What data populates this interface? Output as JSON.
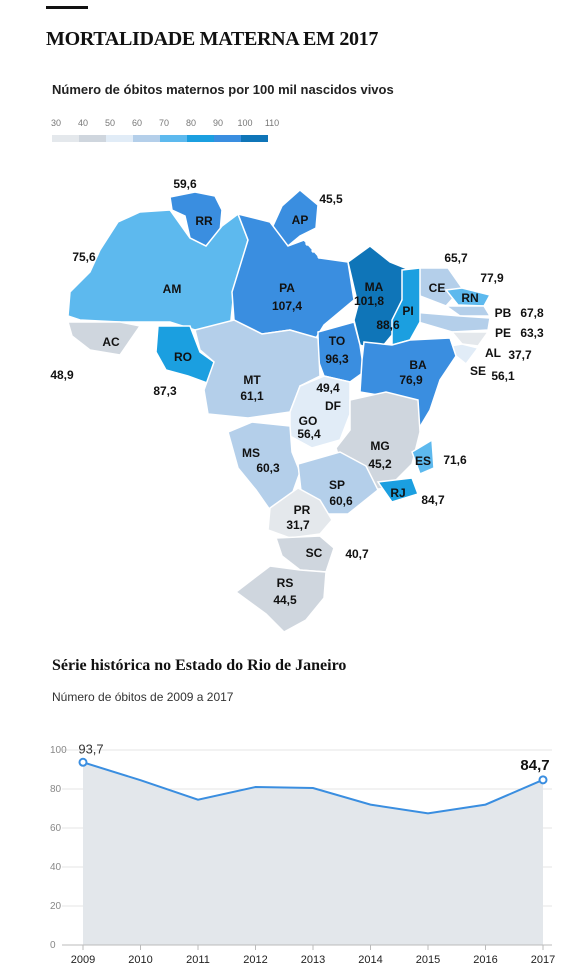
{
  "header": {
    "title": "MORTALIDADE MATERNA EM 2017"
  },
  "map": {
    "subtitle": "Número de óbitos maternos por 100 mil nascidos vivos",
    "legend": {
      "ticks": [
        "30",
        "40",
        "50",
        "60",
        "70",
        "80",
        "90",
        "100",
        "110"
      ],
      "colors": [
        "#e4e8ec",
        "#cfd6de",
        "#e1ecf7",
        "#b4cfea",
        "#5db9ee",
        "#1b9fe0",
        "#3a8ee0",
        "#0f75b8"
      ]
    },
    "states": [
      {
        "uf": "RR",
        "value": "59,6",
        "color": "#3a8ee0"
      },
      {
        "uf": "AP",
        "value": "45,5",
        "color": "#3a8ee0"
      },
      {
        "uf": "AM",
        "value": "75,6",
        "color": "#5db9ee"
      },
      {
        "uf": "PA",
        "value": "107,4",
        "color": "#3a8ee0"
      },
      {
        "uf": "MA",
        "value": "101,8",
        "color": "#0f75b8"
      },
      {
        "uf": "CE",
        "value": "65,7",
        "color": "#b4cfea"
      },
      {
        "uf": "RN",
        "value": "77,9",
        "color": "#5db9ee"
      },
      {
        "uf": "PB",
        "value": "67,8",
        "color": "#b4cfea"
      },
      {
        "uf": "PE",
        "value": "63,3",
        "color": "#b4cfea"
      },
      {
        "uf": "AL",
        "value": "37,7",
        "color": "#e4e8ec"
      },
      {
        "uf": "SE",
        "value": "56,1",
        "color": "#e1ecf7"
      },
      {
        "uf": "PI",
        "value": "88,6",
        "color": "#1b9fe0"
      },
      {
        "uf": "TO",
        "value": "96,3",
        "color": "#3a8ee0"
      },
      {
        "uf": "BA",
        "value": "76,9",
        "color": "#3a8ee0"
      },
      {
        "uf": "AC",
        "value": "48,9",
        "color": "#cfd6de"
      },
      {
        "uf": "RO",
        "value": "87,3",
        "color": "#1b9fe0"
      },
      {
        "uf": "MT",
        "value": "61,1",
        "color": "#b4cfea"
      },
      {
        "uf": "DF",
        "value": "49,4",
        "color": "#cfd6de"
      },
      {
        "uf": "GO",
        "value": "56,4",
        "color": "#e1ecf7"
      },
      {
        "uf": "MG",
        "value": "45,2",
        "color": "#cfd6de"
      },
      {
        "uf": "ES",
        "value": "71,6",
        "color": "#5db9ee"
      },
      {
        "uf": "MS",
        "value": "60,3",
        "color": "#b4cfea"
      },
      {
        "uf": "SP",
        "value": "60,6",
        "color": "#b4cfea"
      },
      {
        "uf": "RJ",
        "value": "84,7",
        "color": "#1b9fe0"
      },
      {
        "uf": "PR",
        "value": "31,7",
        "color": "#e4e8ec"
      },
      {
        "uf": "SC",
        "value": "40,7",
        "color": "#cfd6de"
      },
      {
        "uf": "RS",
        "value": "44,5",
        "color": "#cfd6de"
      }
    ]
  },
  "series_section": {
    "title": "Série histórica no Estado do Rio de Janeiro",
    "subtitle": "Número de óbitos de 2009 a 2017"
  },
  "chart_data": {
    "type": "line",
    "x": [
      "2009",
      "2010",
      "2011",
      "2012",
      "2013",
      "2014",
      "2015",
      "2016",
      "2017"
    ],
    "series": [
      {
        "values": [
          93.7,
          84.5,
          74.5,
          81.0,
          80.5,
          72.0,
          67.5,
          72.0,
          84.7
        ]
      }
    ],
    "ylim": [
      0,
      100
    ],
    "yticks": [
      "0",
      "20",
      "40",
      "60",
      "80",
      "100"
    ],
    "first_label": "93,7",
    "last_label": "84,7",
    "grid": true,
    "line_color": "#3a8ee0",
    "area_color": "#e3e7eb"
  }
}
